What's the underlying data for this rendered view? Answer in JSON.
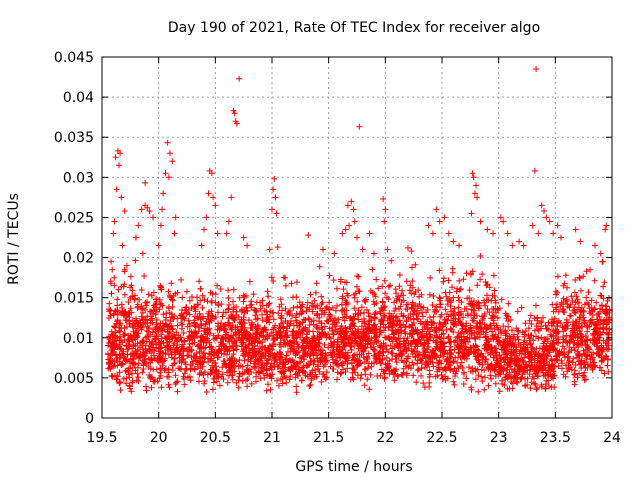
{
  "chart_data": {
    "type": "scatter",
    "title": "Day 190 of 2021, Rate Of TEC Index for receiver algo",
    "xlabel": "GPS time / hours",
    "ylabel": "ROTI / TECUs",
    "xlim": [
      19.5,
      24
    ],
    "ylim": [
      0,
      0.045
    ],
    "xticks": [
      "19.5",
      "20",
      "20.5",
      "21",
      "21.5",
      "22",
      "22.5",
      "23",
      "23.5",
      "24"
    ],
    "yticks": [
      "0",
      "0.005",
      "0.01",
      "0.015",
      "0.02",
      "0.025",
      "0.03",
      "0.035",
      "0.04",
      "0.045"
    ],
    "grid": true,
    "marker": "+",
    "color": "#ff0000",
    "series": [
      {
        "name": "ROTI",
        "points": [
          [
            19.62,
            0.0325
          ],
          [
            19.64,
            0.0333
          ],
          [
            19.66,
            0.033
          ],
          [
            19.65,
            0.0315
          ],
          [
            19.63,
            0.0285
          ],
          [
            19.67,
            0.0275
          ],
          [
            19.7,
            0.0258
          ],
          [
            19.6,
            0.023
          ],
          [
            19.61,
            0.0245
          ],
          [
            19.68,
            0.0215
          ],
          [
            19.72,
            0.019
          ],
          [
            19.58,
            0.0195
          ],
          [
            19.59,
            0.0185
          ],
          [
            19.85,
            0.026
          ],
          [
            19.88,
            0.0265
          ],
          [
            19.9,
            0.0262
          ],
          [
            19.92,
            0.0258
          ],
          [
            19.95,
            0.025
          ],
          [
            19.88,
            0.0293
          ],
          [
            19.82,
            0.024
          ],
          [
            19.8,
            0.0225
          ],
          [
            19.86,
            0.0205
          ],
          [
            20.08,
            0.0343
          ],
          [
            20.1,
            0.033
          ],
          [
            20.12,
            0.032
          ],
          [
            20.06,
            0.0305
          ],
          [
            20.09,
            0.03
          ],
          [
            20.04,
            0.028
          ],
          [
            20.03,
            0.026
          ],
          [
            20.02,
            0.024
          ],
          [
            20.15,
            0.025
          ],
          [
            20.14,
            0.023
          ],
          [
            20.0,
            0.0215
          ],
          [
            20.45,
            0.0308
          ],
          [
            20.47,
            0.0305
          ],
          [
            20.44,
            0.028
          ],
          [
            20.48,
            0.0275
          ],
          [
            20.5,
            0.0265
          ],
          [
            20.42,
            0.025
          ],
          [
            20.4,
            0.0235
          ],
          [
            20.52,
            0.023
          ],
          [
            20.38,
            0.0215
          ],
          [
            20.66,
            0.0383
          ],
          [
            20.67,
            0.038
          ],
          [
            20.68,
            0.037
          ],
          [
            20.69,
            0.0367
          ],
          [
            20.71,
            0.0423
          ],
          [
            20.64,
            0.0275
          ],
          [
            20.62,
            0.0245
          ],
          [
            20.6,
            0.023
          ],
          [
            20.75,
            0.0225
          ],
          [
            20.78,
            0.0215
          ],
          [
            21.02,
            0.0298
          ],
          [
            21.01,
            0.0285
          ],
          [
            21.03,
            0.0275
          ],
          [
            21.0,
            0.026
          ],
          [
            21.04,
            0.0255
          ],
          [
            21.05,
            0.0213
          ],
          [
            20.98,
            0.021
          ],
          [
            21.32,
            0.0228
          ],
          [
            21.45,
            0.021
          ],
          [
            21.55,
            0.0205
          ],
          [
            21.62,
            0.023
          ],
          [
            21.65,
            0.0235
          ],
          [
            21.67,
            0.0265
          ],
          [
            21.7,
            0.027
          ],
          [
            21.72,
            0.026
          ],
          [
            21.73,
            0.0245
          ],
          [
            21.68,
            0.024
          ],
          [
            21.75,
            0.0225
          ],
          [
            21.77,
            0.0363
          ],
          [
            21.8,
            0.021
          ],
          [
            21.86,
            0.023
          ],
          [
            21.9,
            0.0205
          ],
          [
            21.98,
            0.0273
          ],
          [
            22.0,
            0.026
          ],
          [
            21.99,
            0.0245
          ],
          [
            22.02,
            0.021
          ],
          [
            22.2,
            0.0212
          ],
          [
            22.23,
            0.0208
          ],
          [
            22.38,
            0.024
          ],
          [
            22.42,
            0.023
          ],
          [
            22.45,
            0.026
          ],
          [
            22.48,
            0.0245
          ],
          [
            22.52,
            0.025
          ],
          [
            22.56,
            0.023
          ],
          [
            22.6,
            0.022
          ],
          [
            22.65,
            0.0215
          ],
          [
            22.77,
            0.0305
          ],
          [
            22.78,
            0.03
          ],
          [
            22.8,
            0.029
          ],
          [
            22.79,
            0.028
          ],
          [
            22.81,
            0.0275
          ],
          [
            22.76,
            0.0255
          ],
          [
            22.84,
            0.0245
          ],
          [
            22.9,
            0.0235
          ],
          [
            22.95,
            0.023
          ],
          [
            23.02,
            0.025
          ],
          [
            23.04,
            0.0245
          ],
          [
            23.08,
            0.023
          ],
          [
            23.12,
            0.0215
          ],
          [
            23.18,
            0.022
          ],
          [
            23.22,
            0.0215
          ],
          [
            23.33,
            0.0435
          ],
          [
            23.32,
            0.0308
          ],
          [
            23.3,
            0.024
          ],
          [
            23.35,
            0.023
          ],
          [
            23.38,
            0.0265
          ],
          [
            23.4,
            0.0258
          ],
          [
            23.42,
            0.025
          ],
          [
            23.45,
            0.0245
          ],
          [
            23.48,
            0.023
          ],
          [
            23.52,
            0.024
          ],
          [
            23.55,
            0.0225
          ],
          [
            23.68,
            0.0235
          ],
          [
            23.72,
            0.022
          ],
          [
            23.85,
            0.0215
          ],
          [
            23.9,
            0.0205
          ],
          [
            23.94,
            0.0235
          ],
          [
            23.95,
            0.024
          ],
          [
            23.92,
            0.0195
          ]
        ]
      }
    ],
    "dense_band": [
      {
        "x": [
          19.55,
          20.4
        ],
        "y": [
          0.003,
          0.019
        ]
      },
      {
        "x": [
          20.4,
          21.6
        ],
        "y": [
          0.003,
          0.018
        ]
      },
      {
        "x": [
          21.6,
          22.4
        ],
        "y": [
          0.0035,
          0.019
        ]
      },
      {
        "x": [
          22.4,
          23.0
        ],
        "y": [
          0.003,
          0.02
        ]
      },
      {
        "x": [
          23.0,
          23.5
        ],
        "y": [
          0.003,
          0.015
        ]
      },
      {
        "x": [
          23.5,
          23.98
        ],
        "y": [
          0.004,
          0.019
        ]
      }
    ]
  }
}
